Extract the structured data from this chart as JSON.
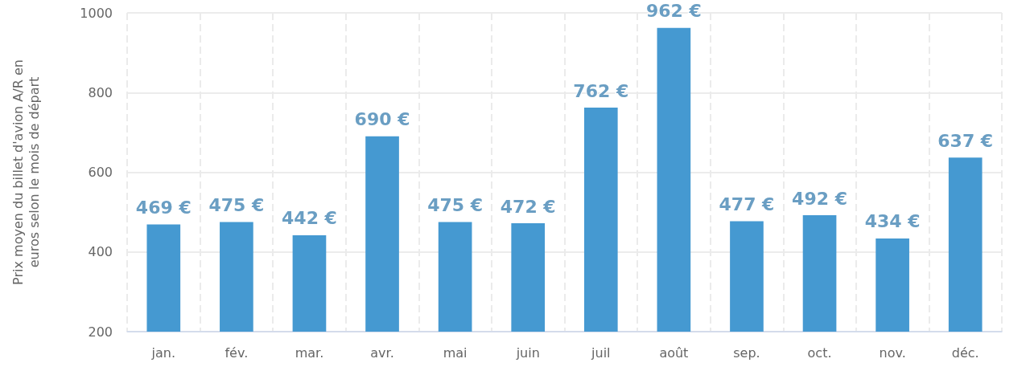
{
  "chart_data": {
    "type": "bar",
    "ylabel": "Prix moyen du billet d'avion A/R en euros selon le mois de départ",
    "categories": [
      "jan.",
      "fév.",
      "mar.",
      "avr.",
      "mai",
      "juin",
      "juil",
      "août",
      "sep.",
      "oct.",
      "nov.",
      "déc."
    ],
    "values": [
      469,
      475,
      442,
      690,
      475,
      472,
      762,
      962,
      477,
      492,
      434,
      637
    ],
    "value_labels": [
      "469 €",
      "475 €",
      "442 €",
      "690 €",
      "475 €",
      "472 €",
      "762 €",
      "962 €",
      "477 €",
      "492 €",
      "434 €",
      "637 €"
    ],
    "color": "#4599d1",
    "ylim": [
      200,
      1000
    ],
    "yticks": [
      200,
      400,
      600,
      800,
      1000
    ],
    "grid": true
  }
}
